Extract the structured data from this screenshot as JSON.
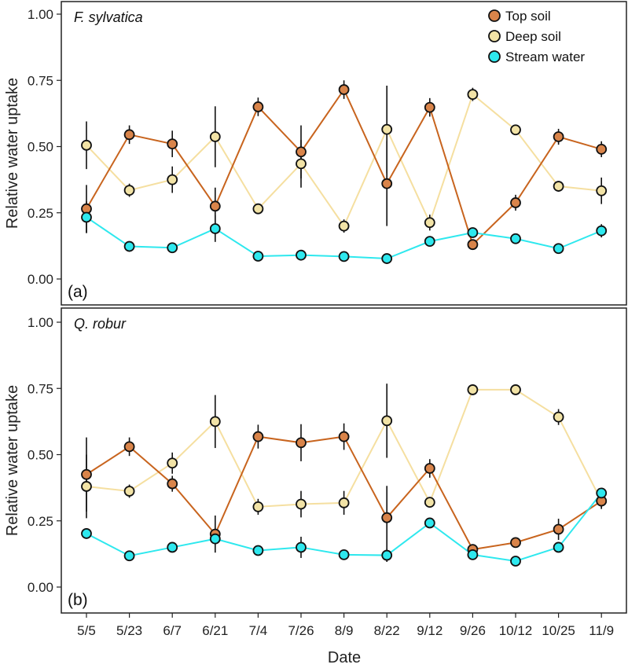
{
  "figure": {
    "xlabel": "Date",
    "ylabel": "Relative water uptake"
  },
  "legend": {
    "placement": "top-right",
    "items": [
      {
        "name": "Top soil",
        "color": "#d9844a"
      },
      {
        "name": "Deep soil",
        "color": "#f2e3a6"
      },
      {
        "name": "Stream water",
        "color": "#2ee8ee"
      }
    ]
  },
  "chart_data": [
    {
      "type": "line",
      "title": "F. sylvatica",
      "panel_label": "(a)",
      "x": [
        "5/5",
        "5/23",
        "6/7",
        "6/21",
        "7/4",
        "7/26",
        "8/9",
        "8/22",
        "9/12",
        "9/26",
        "10/12",
        "10/25",
        "11/9"
      ],
      "ylabel": "Relative water uptake",
      "ylim": [
        -0.1,
        1.05
      ],
      "yticks": [
        "0.00",
        "0.25",
        "0.50",
        "0.75",
        "1.00"
      ],
      "grid": false,
      "series": [
        {
          "name": "Top soil",
          "color": "#d9844a",
          "line_color": "#c8641e",
          "values": [
            0.265,
            0.545,
            0.51,
            0.275,
            0.65,
            0.48,
            0.715,
            0.36,
            0.648,
            0.13,
            0.288,
            0.537,
            0.49
          ],
          "error": [
            0.09,
            0.035,
            0.05,
            0.07,
            0.035,
            0.1,
            0.035,
            0.16,
            0.035,
            0.0,
            0.03,
            0.03,
            0.03
          ]
        },
        {
          "name": "Deep soil",
          "color": "#f2e3a6",
          "line_color": "#f5dfa0",
          "values": [
            0.505,
            0.335,
            0.375,
            0.537,
            0.265,
            0.435,
            0.2,
            0.565,
            0.213,
            0.697,
            0.563,
            0.35,
            0.333
          ],
          "error": [
            0.09,
            0.025,
            0.05,
            0.115,
            0.02,
            0.09,
            0.025,
            0.165,
            0.03,
            0.025,
            0.02,
            0.02,
            0.05
          ]
        },
        {
          "name": "Stream water",
          "color": "#2ee8ee",
          "line_color": "#2ee8ee",
          "values": [
            0.233,
            0.123,
            0.118,
            0.19,
            0.086,
            0.09,
            0.085,
            0.077,
            0.142,
            0.175,
            0.152,
            0.115,
            0.182
          ],
          "error": [
            0.06,
            0.0,
            0.0,
            0.05,
            0.0,
            0.0,
            0.0,
            0.0,
            0.0,
            0.0,
            0.0,
            0.0,
            0.025
          ]
        }
      ]
    },
    {
      "type": "line",
      "title": "Q. robur",
      "panel_label": "(b)",
      "x": [
        "5/5",
        "5/23",
        "6/7",
        "6/21",
        "7/4",
        "7/26",
        "8/9",
        "8/22",
        "9/12",
        "9/26",
        "10/12",
        "10/25",
        "11/9"
      ],
      "xlabel": "Date",
      "ylabel": "Relative water uptake",
      "ylim": [
        -0.1,
        1.05
      ],
      "yticks": [
        "0.00",
        "0.25",
        "0.50",
        "0.75",
        "1.00"
      ],
      "grid": false,
      "series": [
        {
          "name": "Top soil",
          "color": "#d9844a",
          "line_color": "#c8641e",
          "values": [
            0.425,
            0.53,
            0.39,
            0.2,
            0.568,
            0.545,
            0.568,
            0.262,
            0.448,
            0.142,
            0.168,
            0.218,
            0.325
          ],
          "error": [
            0.14,
            0.035,
            0.03,
            0.07,
            0.045,
            0.07,
            0.05,
            0.12,
            0.035,
            0.0,
            0.0,
            0.04,
            0.03
          ]
        },
        {
          "name": "Deep soil",
          "color": "#f2e3a6",
          "line_color": "#f5dfa0",
          "values": [
            0.38,
            0.362,
            0.468,
            0.625,
            0.303,
            0.313,
            0.318,
            0.628,
            0.32,
            0.745,
            0.745,
            0.642,
            0.325
          ],
          "error": [
            0.12,
            0.025,
            0.04,
            0.1,
            0.03,
            0.05,
            0.045,
            0.14,
            0.02,
            0.02,
            0.0,
            0.03,
            0.03
          ]
        },
        {
          "name": "Stream water",
          "color": "#2ee8ee",
          "line_color": "#2ee8ee",
          "values": [
            0.202,
            0.118,
            0.15,
            0.182,
            0.138,
            0.15,
            0.122,
            0.12,
            0.242,
            0.122,
            0.098,
            0.15,
            0.355
          ],
          "error": [
            0.0,
            0.0,
            0.0,
            0.02,
            0.0,
            0.04,
            0.0,
            0.025,
            0.0,
            0.0,
            0.0,
            0.0,
            0.0
          ]
        }
      ]
    }
  ]
}
